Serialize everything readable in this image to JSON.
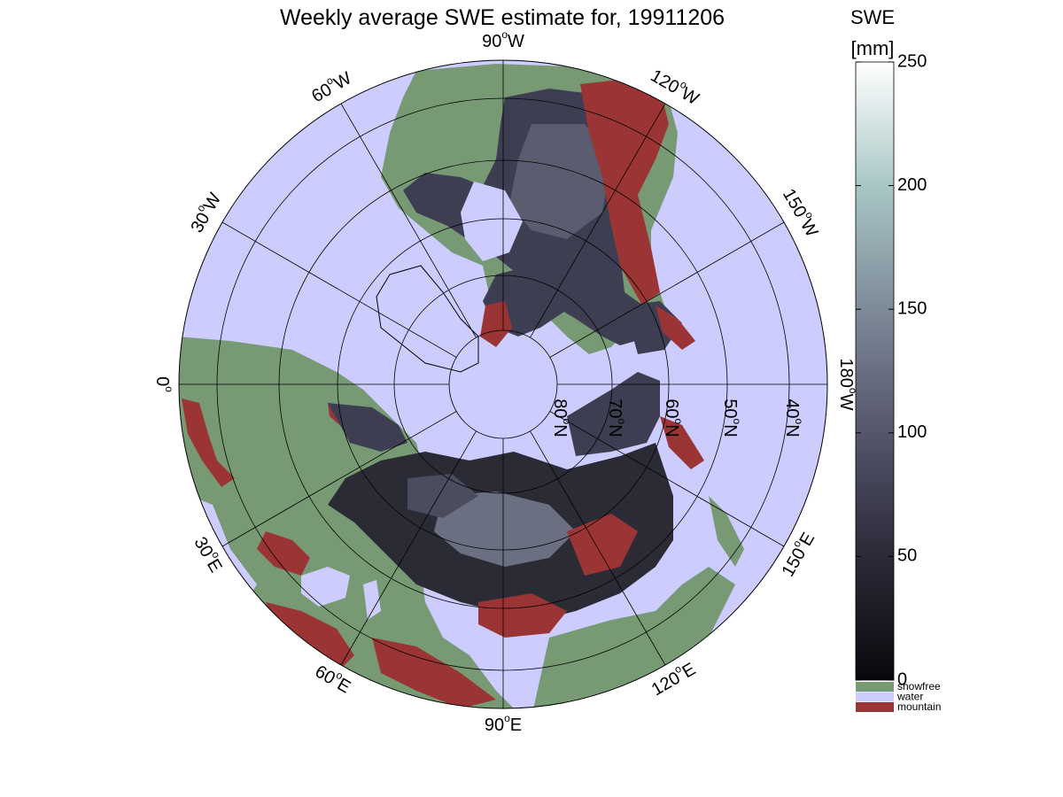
{
  "title": "Weekly average SWE estimate for, 19911206",
  "longitude_labels": [
    {
      "id": "0",
      "deg": "0",
      "suffix": "",
      "angle": 180
    },
    {
      "id": "30e",
      "deg": "30",
      "suffix": "E",
      "angle": 150
    },
    {
      "id": "60e",
      "deg": "60",
      "suffix": "E",
      "angle": 120
    },
    {
      "id": "90e",
      "deg": "90",
      "suffix": "E",
      "angle": 90
    },
    {
      "id": "120e",
      "deg": "120",
      "suffix": "E",
      "angle": 60
    },
    {
      "id": "150e",
      "deg": "150",
      "suffix": "E",
      "angle": 30
    },
    {
      "id": "180w",
      "deg": "180",
      "suffix": "W",
      "angle": 0
    },
    {
      "id": "150w",
      "deg": "150",
      "suffix": "W",
      "angle": -30
    },
    {
      "id": "120w",
      "deg": "120",
      "suffix": "W",
      "angle": -60
    },
    {
      "id": "90w",
      "deg": "90",
      "suffix": "W",
      "angle": -90
    },
    {
      "id": "60w",
      "deg": "60",
      "suffix": "W",
      "angle": -120
    },
    {
      "id": "30w",
      "deg": "30",
      "suffix": "W",
      "angle": -150
    }
  ],
  "latitude_labels": [
    {
      "id": "80n",
      "deg": "80",
      "suffix": "N",
      "lat": 80
    },
    {
      "id": "70n",
      "deg": "70",
      "suffix": "N",
      "lat": 70
    },
    {
      "id": "60n",
      "deg": "60",
      "suffix": "N",
      "lat": 60
    },
    {
      "id": "50n",
      "deg": "50",
      "suffix": "N",
      "lat": 50
    },
    {
      "id": "40n",
      "deg": "40",
      "suffix": "N",
      "lat": 40
    }
  ],
  "colorbar": {
    "title": "SWE",
    "unit": "[mm]",
    "min": 0,
    "max": 250,
    "ticks": [
      {
        "value": 0,
        "label": "0"
      },
      {
        "value": 50,
        "label": "50"
      },
      {
        "value": 100,
        "label": "100"
      },
      {
        "value": 150,
        "label": "150"
      },
      {
        "value": 200,
        "label": "200"
      },
      {
        "value": 250,
        "label": "250"
      }
    ],
    "gradient_stops": [
      "#08080c",
      "#2a2a38",
      "#55556c",
      "#7d8a98",
      "#a9c7c6",
      "#ffffff"
    ]
  },
  "categories": [
    {
      "id": "snowfree",
      "label": "snowfree",
      "color": "#779a74"
    },
    {
      "id": "water",
      "label": "water",
      "color": "#ccccff"
    },
    {
      "id": "mountain",
      "label": "mountain",
      "color": "#9b3535"
    }
  ],
  "colors": {
    "water": "#ccccff",
    "snowfree": "#779a74",
    "mountain": "#9b3535",
    "snow_deep": "#1c1c24",
    "snow_mid": "#45455a",
    "snow_light": "#8a8ea0"
  }
}
